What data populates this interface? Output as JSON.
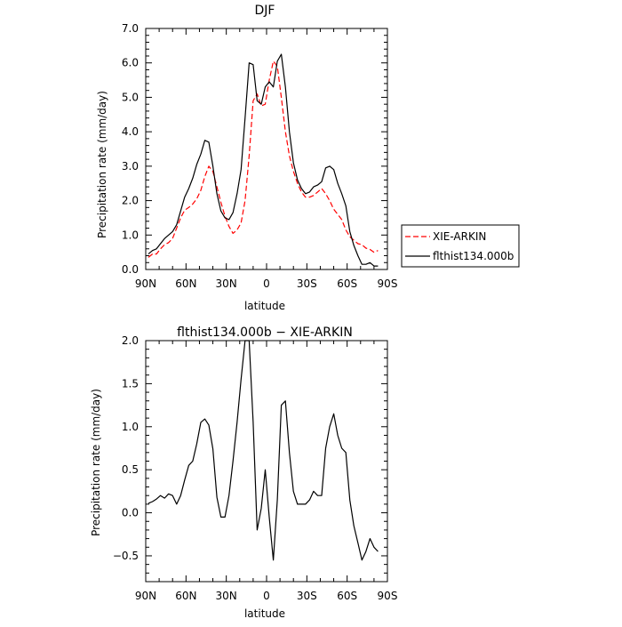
{
  "chart_data": [
    {
      "type": "line",
      "title": "DJF",
      "xlabel": "latitude",
      "ylabel": "Precipitation rate  (mm/day)",
      "xlim": [
        90,
        -90
      ],
      "ylim": [
        0,
        7
      ],
      "x_ticks": [
        90,
        60,
        30,
        0,
        -30,
        -60,
        -90
      ],
      "x_tick_labels": [
        "90N",
        "60N",
        "30N",
        "0",
        "30S",
        "60S",
        "90S"
      ],
      "y_ticks": [
        0,
        1,
        2,
        3,
        4,
        5,
        6,
        7
      ],
      "y_tick_labels": [
        "0.0",
        "1.0",
        "2.0",
        "3.0",
        "4.0",
        "5.0",
        "6.0",
        "7.0"
      ],
      "grid": false,
      "legend_placement": "right-outside",
      "series": [
        {
          "name": "XIE-ARKIN",
          "color": "#ff0000",
          "dash": true,
          "points": [
            [
              88,
              0.35
            ],
            [
              85,
              0.45
            ],
            [
              82,
              0.45
            ],
            [
              79,
              0.6
            ],
            [
              76,
              0.72
            ],
            [
              73,
              0.78
            ],
            [
              70,
              0.9
            ],
            [
              67,
              1.2
            ],
            [
              64,
              1.5
            ],
            [
              61,
              1.72
            ],
            [
              58,
              1.8
            ],
            [
              55,
              1.9
            ],
            [
              52,
              2.05
            ],
            [
              49,
              2.3
            ],
            [
              46,
              2.7
            ],
            [
              43,
              3.0
            ],
            [
              40,
              2.85
            ],
            [
              37,
              2.4
            ],
            [
              34,
              1.95
            ],
            [
              31,
              1.55
            ],
            [
              28,
              1.25
            ],
            [
              25,
              1.05
            ],
            [
              22,
              1.15
            ],
            [
              19,
              1.35
            ],
            [
              16,
              2.0
            ],
            [
              13,
              3.3
            ],
            [
              10,
              4.9
            ],
            [
              7,
              5.1
            ],
            [
              4,
              4.75
            ],
            [
              1,
              4.8
            ],
            [
              -2,
              5.5
            ],
            [
              -5,
              6.05
            ],
            [
              -8,
              5.9
            ],
            [
              -11,
              5.0
            ],
            [
              -14,
              4.0
            ],
            [
              -17,
              3.3
            ],
            [
              -20,
              2.85
            ],
            [
              -23,
              2.5
            ],
            [
              -26,
              2.25
            ],
            [
              -29,
              2.1
            ],
            [
              -32,
              2.1
            ],
            [
              -35,
              2.15
            ],
            [
              -38,
              2.25
            ],
            [
              -41,
              2.35
            ],
            [
              -44,
              2.2
            ],
            [
              -47,
              2.0
            ],
            [
              -50,
              1.75
            ],
            [
              -53,
              1.6
            ],
            [
              -56,
              1.45
            ],
            [
              -59,
              1.15
            ],
            [
              -62,
              0.95
            ],
            [
              -65,
              0.85
            ],
            [
              -68,
              0.75
            ],
            [
              -71,
              0.72
            ],
            [
              -74,
              0.62
            ],
            [
              -77,
              0.58
            ],
            [
              -80,
              0.5
            ],
            [
              -83,
              0.55
            ]
          ]
        },
        {
          "name": "flthist134.000b",
          "color": "#000000",
          "dash": false,
          "points": [
            [
              88,
              0.45
            ],
            [
              85,
              0.55
            ],
            [
              82,
              0.6
            ],
            [
              79,
              0.75
            ],
            [
              76,
              0.9
            ],
            [
              73,
              1.0
            ],
            [
              70,
              1.1
            ],
            [
              67,
              1.3
            ],
            [
              64,
              1.7
            ],
            [
              61,
              2.1
            ],
            [
              58,
              2.35
            ],
            [
              55,
              2.65
            ],
            [
              52,
              3.05
            ],
            [
              49,
              3.35
            ],
            [
              46,
              3.75
            ],
            [
              43,
              3.7
            ],
            [
              40,
              3.0
            ],
            [
              37,
              2.2
            ],
            [
              34,
              1.7
            ],
            [
              31,
              1.5
            ],
            [
              28,
              1.45
            ],
            [
              25,
              1.65
            ],
            [
              22,
              2.2
            ],
            [
              19,
              2.9
            ],
            [
              16,
              4.4
            ],
            [
              13,
              6.0
            ],
            [
              10,
              5.95
            ],
            [
              7,
              4.9
            ],
            [
              4,
              4.8
            ],
            [
              1,
              5.3
            ],
            [
              -2,
              5.45
            ],
            [
              -5,
              5.3
            ],
            [
              -8,
              6.05
            ],
            [
              -11,
              6.25
            ],
            [
              -14,
              5.3
            ],
            [
              -17,
              4.0
            ],
            [
              -20,
              3.1
            ],
            [
              -23,
              2.6
            ],
            [
              -26,
              2.35
            ],
            [
              -29,
              2.2
            ],
            [
              -32,
              2.25
            ],
            [
              -35,
              2.4
            ],
            [
              -38,
              2.45
            ],
            [
              -41,
              2.55
            ],
            [
              -44,
              2.95
            ],
            [
              -47,
              3.0
            ],
            [
              -50,
              2.9
            ],
            [
              -53,
              2.5
            ],
            [
              -56,
              2.2
            ],
            [
              -59,
              1.85
            ],
            [
              -62,
              1.1
            ],
            [
              -65,
              0.7
            ],
            [
              -68,
              0.4
            ],
            [
              -71,
              0.15
            ],
            [
              -74,
              0.15
            ],
            [
              -77,
              0.2
            ],
            [
              -80,
              0.1
            ],
            [
              -83,
              0.1
            ]
          ]
        }
      ]
    },
    {
      "type": "line",
      "title": "flthist134.000b  −  XIE-ARKIN",
      "xlabel": "latitude",
      "ylabel": "Precipitation rate  (mm/day)",
      "xlim": [
        90,
        -90
      ],
      "ylim": [
        -0.8,
        2.0
      ],
      "x_ticks": [
        90,
        60,
        30,
        0,
        -30,
        -60,
        -90
      ],
      "x_tick_labels": [
        "90N",
        "60N",
        "30N",
        "0",
        "30S",
        "60S",
        "90S"
      ],
      "y_ticks": [
        -0.5,
        0,
        0.5,
        1.0,
        1.5,
        2.0
      ],
      "y_tick_labels": [
        "−0.5",
        "0.0",
        "0.5",
        "1.0",
        "1.5",
        "2.0"
      ],
      "grid": false,
      "series": [
        {
          "color": "#000000",
          "dash": false,
          "points": [
            [
              88,
              0.11
            ],
            [
              85,
              0.13
            ],
            [
              82,
              0.16
            ],
            [
              79,
              0.2
            ],
            [
              76,
              0.17
            ],
            [
              73,
              0.22
            ],
            [
              70,
              0.2
            ],
            [
              67,
              0.1
            ],
            [
              64,
              0.2
            ],
            [
              61,
              0.38
            ],
            [
              58,
              0.55
            ],
            [
              55,
              0.6
            ],
            [
              52,
              0.8
            ],
            [
              49,
              1.05
            ],
            [
              46,
              1.09
            ],
            [
              43,
              1.02
            ],
            [
              40,
              0.74
            ],
            [
              37,
              0.18
            ],
            [
              34,
              -0.05
            ],
            [
              31,
              -0.05
            ],
            [
              28,
              0.2
            ],
            [
              25,
              0.6
            ],
            [
              22,
              1.05
            ],
            [
              19,
              1.55
            ],
            [
              16,
              2.4
            ],
            [
              13,
              2.7
            ],
            [
              10,
              1.05
            ],
            [
              7,
              -0.2
            ],
            [
              4,
              0.05
            ],
            [
              1,
              0.5
            ],
            [
              -2,
              -0.05
            ],
            [
              -5,
              -0.55
            ],
            [
              -8,
              0.15
            ],
            [
              -11,
              1.25
            ],
            [
              -14,
              1.3
            ],
            [
              -17,
              0.7
            ],
            [
              -20,
              0.25
            ],
            [
              -23,
              0.1
            ],
            [
              -26,
              0.1
            ],
            [
              -29,
              0.1
            ],
            [
              -32,
              0.15
            ],
            [
              -35,
              0.25
            ],
            [
              -38,
              0.2
            ],
            [
              -41,
              0.2
            ],
            [
              -44,
              0.75
            ],
            [
              -47,
              1.0
            ],
            [
              -50,
              1.15
            ],
            [
              -53,
              0.9
            ],
            [
              -56,
              0.75
            ],
            [
              -59,
              0.7
            ],
            [
              -62,
              0.15
            ],
            [
              -65,
              -0.15
            ],
            [
              -68,
              -0.35
            ],
            [
              -71,
              -0.55
            ],
            [
              -74,
              -0.45
            ],
            [
              -77,
              -0.3
            ],
            [
              -80,
              -0.4
            ],
            [
              -83,
              -0.45
            ]
          ]
        }
      ]
    }
  ]
}
